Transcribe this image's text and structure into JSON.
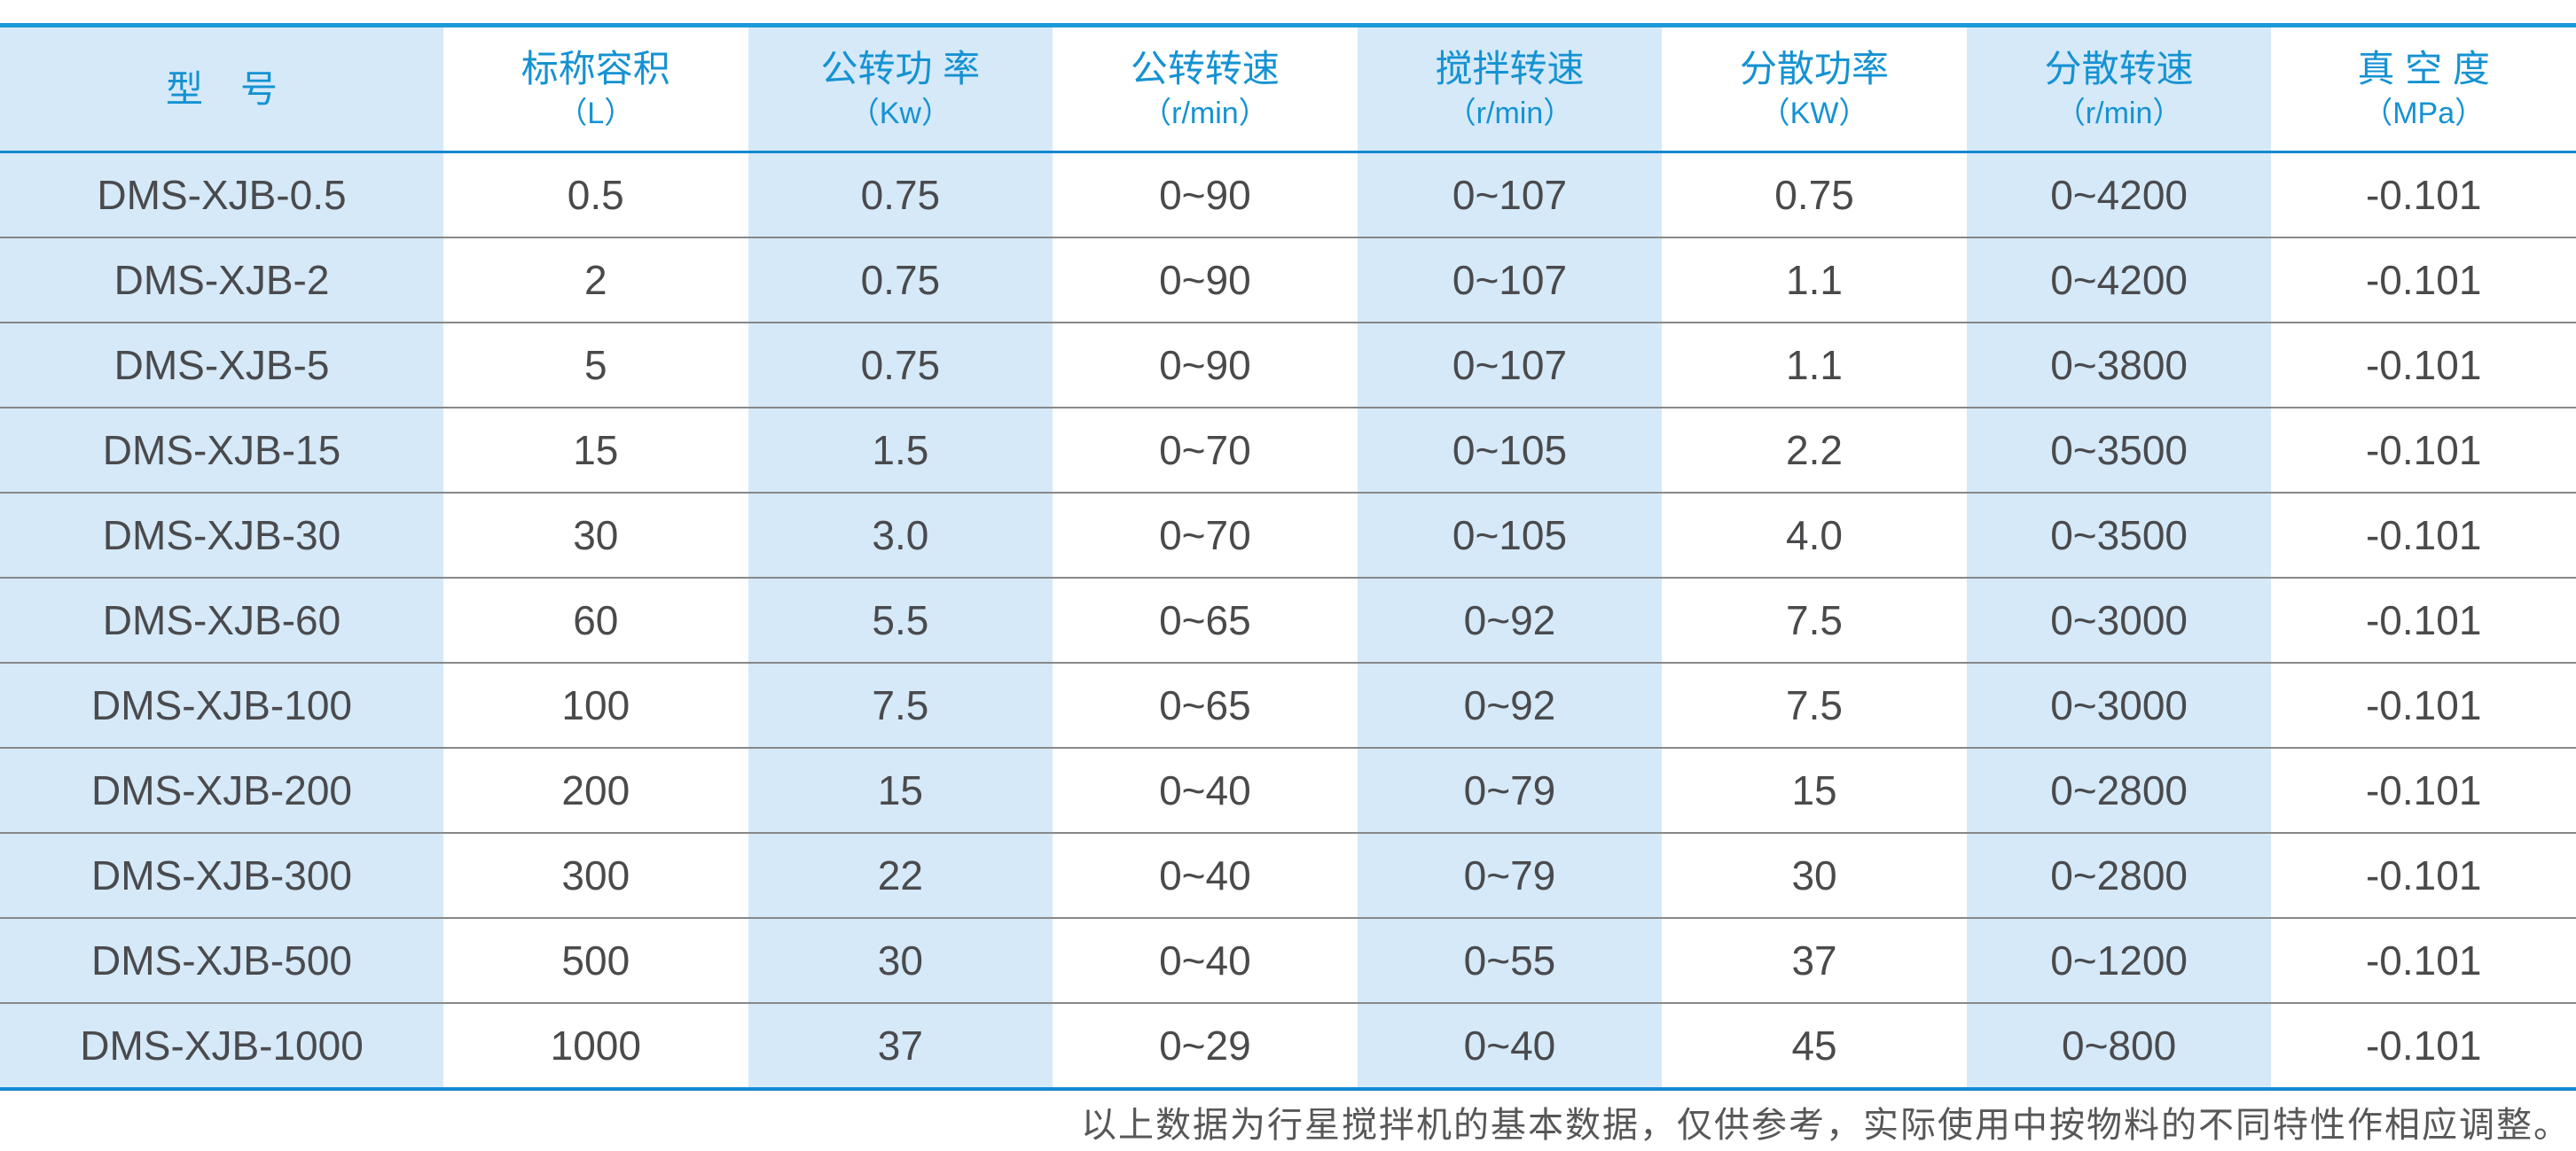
{
  "colors": {
    "accent_blue_border": "#1B9AD8",
    "header_text_blue": "#1592D2",
    "cell_light_blue": "#D5E9F8",
    "body_text_gray": "#4A4A4D",
    "row_separator_gray": "#888888"
  },
  "table": {
    "columns": [
      {
        "label": "型　号",
        "unit": ""
      },
      {
        "label": "标称容积",
        "unit": "（L）"
      },
      {
        "label": "公转功 率",
        "unit": "（Kw）"
      },
      {
        "label": "公转转速",
        "unit": "（r/min）"
      },
      {
        "label": "搅拌转速",
        "unit": "（r/min）"
      },
      {
        "label": "分散功率",
        "unit": "（KW）"
      },
      {
        "label": "分散转速",
        "unit": "（r/min）"
      },
      {
        "label": "真 空 度",
        "unit": "（MPa）"
      }
    ],
    "rows": [
      [
        "DMS-XJB-0.5",
        "0.5",
        "0.75",
        "0~90",
        "0~107",
        "0.75",
        "0~4200",
        "-0.101"
      ],
      [
        "DMS-XJB-2",
        "2",
        "0.75",
        "0~90",
        "0~107",
        "1.1",
        "0~4200",
        "-0.101"
      ],
      [
        "DMS-XJB-5",
        "5",
        "0.75",
        "0~90",
        "0~107",
        "1.1",
        "0~3800",
        "-0.101"
      ],
      [
        "DMS-XJB-15",
        "15",
        "1.5",
        "0~70",
        "0~105",
        "2.2",
        "0~3500",
        "-0.101"
      ],
      [
        "DMS-XJB-30",
        "30",
        "3.0",
        "0~70",
        "0~105",
        "4.0",
        "0~3500",
        "-0.101"
      ],
      [
        "DMS-XJB-60",
        "60",
        "5.5",
        "0~65",
        "0~92",
        "7.5",
        "0~3000",
        "-0.101"
      ],
      [
        "DMS-XJB-100",
        "100",
        "7.5",
        "0~65",
        "0~92",
        "7.5",
        "0~3000",
        "-0.101"
      ],
      [
        "DMS-XJB-200",
        "200",
        "15",
        "0~40",
        "0~79",
        "15",
        "0~2800",
        "-0.101"
      ],
      [
        "DMS-XJB-300",
        "300",
        "22",
        "0~40",
        "0~79",
        "30",
        "0~2800",
        "-0.101"
      ],
      [
        "DMS-XJB-500",
        "500",
        "30",
        "0~40",
        "0~55",
        "37",
        "0~1200",
        "-0.101"
      ],
      [
        "DMS-XJB-1000",
        "1000",
        "37",
        "0~29",
        "0~40",
        "45",
        "0~800",
        "-0.101"
      ]
    ]
  },
  "footer": {
    "note": "以上数据为行星搅拌机的基本数据，仅供参考，实际使用中按物料的不同特性作相应调整。"
  }
}
